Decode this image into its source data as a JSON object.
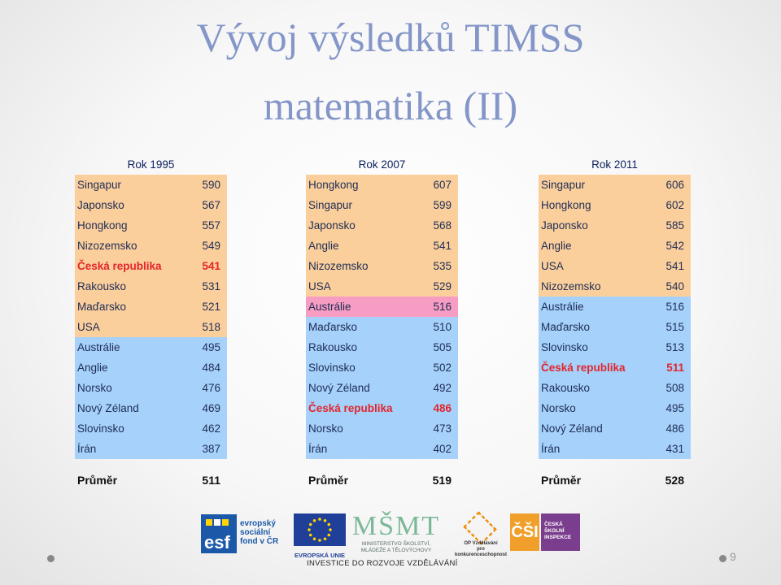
{
  "slide": {
    "title_line1": "Vývoj výsledků TIMSS",
    "title_line2": "matematika (II)",
    "page_number": "9"
  },
  "columns": [
    {
      "header": "Rok 1995",
      "rows": [
        {
          "country": "Singapur",
          "score": "590",
          "color": "orange",
          "cz": false
        },
        {
          "country": "Japonsko",
          "score": "567",
          "color": "orange",
          "cz": false
        },
        {
          "country": "Hongkong",
          "score": "557",
          "color": "orange",
          "cz": false
        },
        {
          "country": "Nizozemsko",
          "score": "549",
          "color": "orange",
          "cz": false
        },
        {
          "country": "Česká republika",
          "score": "541",
          "color": "orange",
          "cz": true
        },
        {
          "country": "Rakousko",
          "score": "531",
          "color": "orange",
          "cz": false
        },
        {
          "country": "Maďarsko",
          "score": "521",
          "color": "orange",
          "cz": false
        },
        {
          "country": "USA",
          "score": "518",
          "color": "orange",
          "cz": false
        },
        {
          "country": "Austrálie",
          "score": "495",
          "color": "blue",
          "cz": false
        },
        {
          "country": "Anglie",
          "score": "484",
          "color": "blue",
          "cz": false
        },
        {
          "country": "Norsko",
          "score": "476",
          "color": "blue",
          "cz": false
        },
        {
          "country": "Nový Zéland",
          "score": "469",
          "color": "blue",
          "cz": false
        },
        {
          "country": "Slovinsko",
          "score": "462",
          "color": "blue",
          "cz": false
        },
        {
          "country": "Írán",
          "score": "387",
          "color": "blue",
          "cz": false
        }
      ],
      "average_label": "Průměr",
      "average_value": "511"
    },
    {
      "header": "Rok 2007",
      "rows": [
        {
          "country": "Hongkong",
          "score": "607",
          "color": "orange",
          "cz": false
        },
        {
          "country": "Singapur",
          "score": "599",
          "color": "orange",
          "cz": false
        },
        {
          "country": "Japonsko",
          "score": "568",
          "color": "orange",
          "cz": false
        },
        {
          "country": "Anglie",
          "score": "541",
          "color": "orange",
          "cz": false
        },
        {
          "country": "Nizozemsko",
          "score": "535",
          "color": "orange",
          "cz": false
        },
        {
          "country": "USA",
          "score": "529",
          "color": "orange",
          "cz": false
        },
        {
          "country": "Austrálie",
          "score": "516",
          "color": "pink",
          "cz": false
        },
        {
          "country": "Maďarsko",
          "score": "510",
          "color": "blue",
          "cz": false
        },
        {
          "country": "Rakousko",
          "score": "505",
          "color": "blue",
          "cz": false
        },
        {
          "country": "Slovinsko",
          "score": "502",
          "color": "blue",
          "cz": false
        },
        {
          "country": "Nový Zéland",
          "score": "492",
          "color": "blue",
          "cz": false
        },
        {
          "country": "Česká republika",
          "score": "486",
          "color": "blue",
          "cz": true
        },
        {
          "country": "Norsko",
          "score": "473",
          "color": "blue",
          "cz": false
        },
        {
          "country": "Írán",
          "score": "402",
          "color": "blue",
          "cz": false
        }
      ],
      "average_label": "Průměr",
      "average_value": "519"
    },
    {
      "header": "Rok 2011",
      "rows": [
        {
          "country": "Singapur",
          "score": "606",
          "color": "orange",
          "cz": false
        },
        {
          "country": "Hongkong",
          "score": "602",
          "color": "orange",
          "cz": false
        },
        {
          "country": "Japonsko",
          "score": "585",
          "color": "orange",
          "cz": false
        },
        {
          "country": "Anglie",
          "score": "542",
          "color": "orange",
          "cz": false
        },
        {
          "country": "USA",
          "score": "541",
          "color": "orange",
          "cz": false
        },
        {
          "country": "Nizozemsko",
          "score": "540",
          "color": "orange",
          "cz": false
        },
        {
          "country": "Austrálie",
          "score": "516",
          "color": "blue",
          "cz": false
        },
        {
          "country": "Maďarsko",
          "score": "515",
          "color": "blue",
          "cz": false
        },
        {
          "country": "Slovinsko",
          "score": "513",
          "color": "blue",
          "cz": false
        },
        {
          "country": "Česká republika",
          "score": "511",
          "color": "blue",
          "cz": true
        },
        {
          "country": "Rakousko",
          "score": "508",
          "color": "blue",
          "cz": false
        },
        {
          "country": "Norsko",
          "score": "495",
          "color": "blue",
          "cz": false
        },
        {
          "country": "Nový Zéland",
          "score": "486",
          "color": "blue",
          "cz": false
        },
        {
          "country": "Írán",
          "score": "431",
          "color": "blue",
          "cz": false
        }
      ],
      "average_label": "Průměr",
      "average_value": "528"
    }
  ],
  "logos": {
    "esf_line1": "evropský",
    "esf_line2": "sociální",
    "esf_line3": "fond v ČR",
    "eu_label": "EVROPSKÁ UNIE",
    "msmt_line1": "MINISTERSTVO ŠKOLSTVÍ,",
    "msmt_line2": "MLÁDEŽE A TĚLOVÝCHOVY",
    "op_line1": "OP Vzdělávání",
    "op_line2": "pro konkurenceschopnost",
    "csi_line1": "ČESKÁ",
    "csi_line2": "ŠKOLNÍ",
    "csi_line3": "INSPEKCE",
    "tagline": "INVESTICE DO ROZVOJE VZDĚLÁVÁNÍ"
  },
  "colors": {
    "orange": "#fbcf9c",
    "blue": "#a5d1fb",
    "pink": "#f79dc4",
    "cz_text": "#e4242a",
    "title": "#8496c8"
  }
}
